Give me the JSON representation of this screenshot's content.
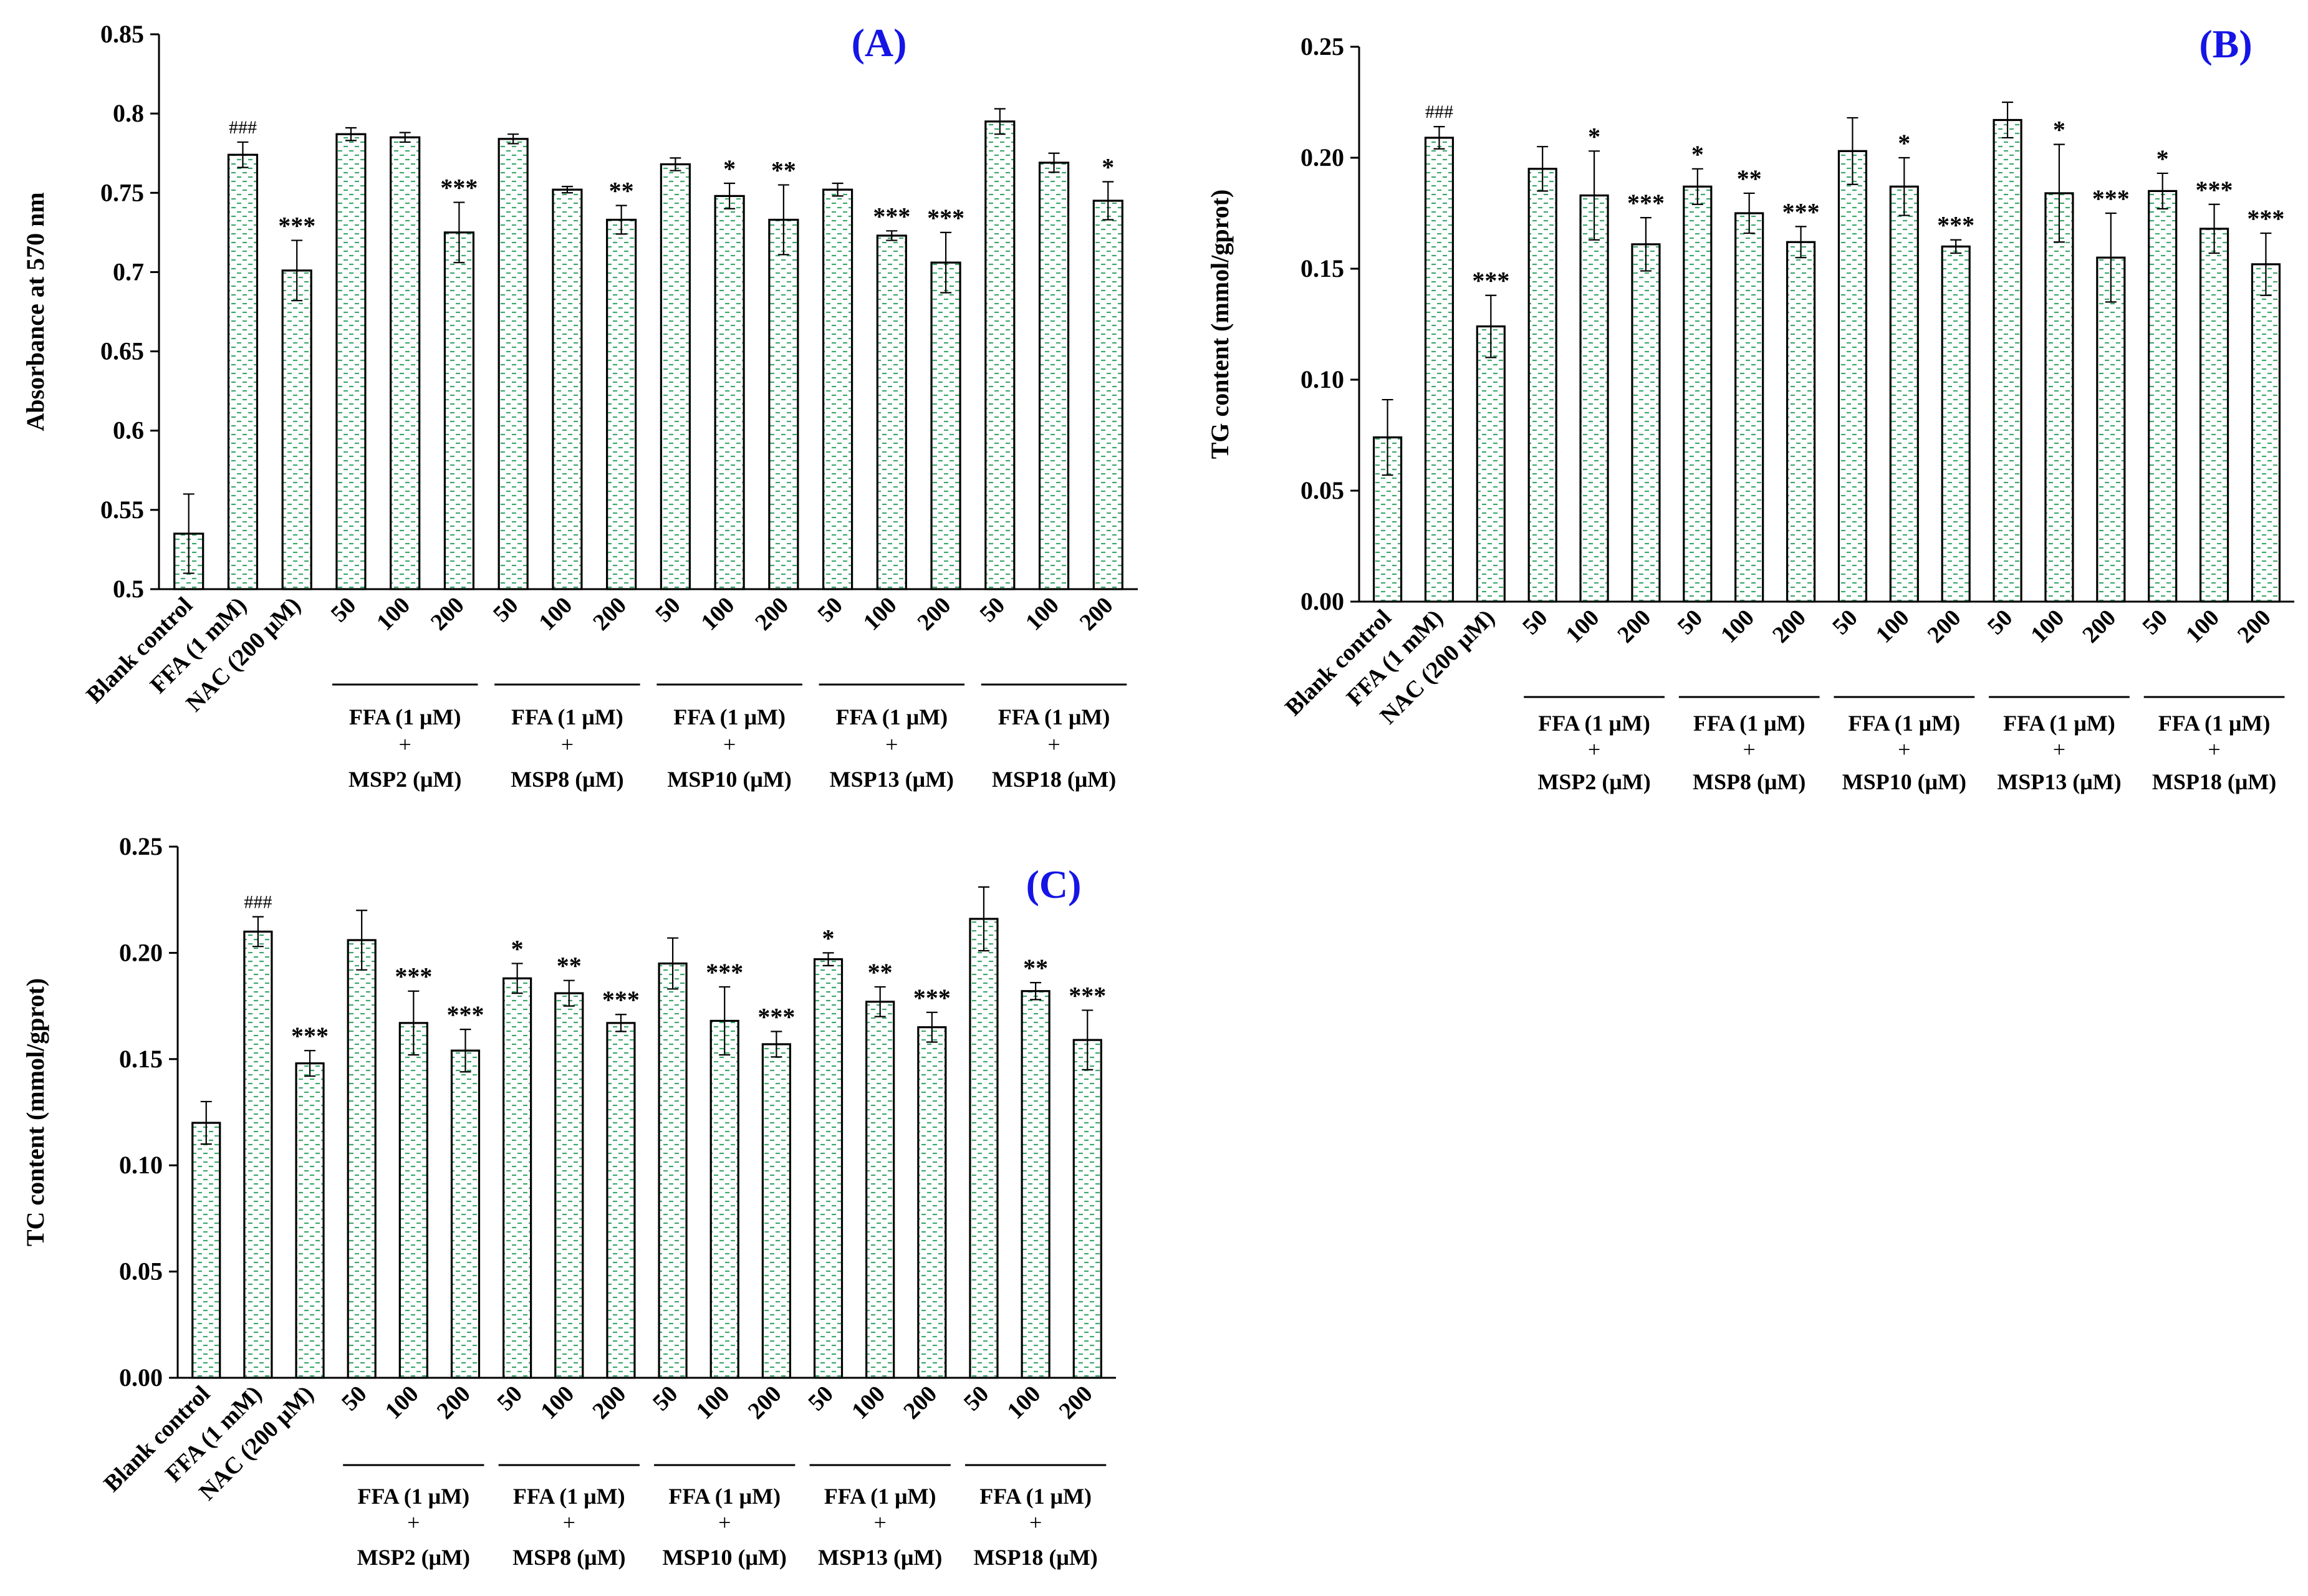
{
  "colors": {
    "bar_fill": "#ffffff",
    "bar_dash": "#3aa86b",
    "bar_edge": "#000000",
    "panel_letter": "#1515e6"
  },
  "common": {
    "single_labels": [
      "Blank control",
      "FFA (1 mM)",
      "NAC (200 μM)"
    ],
    "dose_labels": [
      "50",
      "100",
      "200"
    ],
    "groups": [
      {
        "line1": "FFA (1 μM)",
        "line2": "+",
        "line3": "MSP2 (μM)"
      },
      {
        "line1": "FFA (1 μM)",
        "line2": "+",
        "line3": "MSP8 (μM)"
      },
      {
        "line1": "FFA (1 μM)",
        "line2": "+",
        "line3": "MSP10 (μM)"
      },
      {
        "line1": "FFA (1 μM)",
        "line2": "+",
        "line3": "MSP13 (μM)"
      },
      {
        "line1": "FFA (1 μM)",
        "line2": "+",
        "line3": "MSP18 (μM)"
      }
    ]
  },
  "chart_data": [
    {
      "id": "A",
      "type": "bar",
      "letter": "(A)",
      "ylabel": "Absorbance at 570 nm",
      "ylim": [
        0.5,
        0.85
      ],
      "yticks": [
        "0.5",
        "0.55",
        "0.6",
        "0.65",
        "0.7",
        "0.75",
        "0.8",
        "0.85"
      ],
      "values": [
        0.535,
        0.774,
        0.701,
        0.787,
        0.785,
        0.725,
        0.784,
        0.752,
        0.733,
        0.768,
        0.748,
        0.733,
        0.752,
        0.723,
        0.706,
        0.795,
        0.769,
        0.745
      ],
      "errors": [
        0.025,
        0.008,
        0.019,
        0.004,
        0.003,
        0.019,
        0.003,
        0.002,
        0.009,
        0.004,
        0.008,
        0.022,
        0.004,
        0.003,
        0.019,
        0.008,
        0.006,
        0.012
      ],
      "annotations": [
        "",
        "###",
        "***",
        "",
        "",
        "***",
        "",
        "",
        "**",
        "",
        "*",
        "**",
        "",
        "***",
        "***",
        "",
        "",
        "*"
      ]
    },
    {
      "id": "B",
      "type": "bar",
      "letter": "(B)",
      "ylabel": "TG content (mmol/gprot)",
      "ylim": [
        0,
        0.25
      ],
      "yticks": [
        "0.00",
        "0.05",
        "0.10",
        "0.15",
        "0.20",
        "0.25"
      ],
      "values": [
        0.074,
        0.209,
        0.124,
        0.195,
        0.183,
        0.161,
        0.187,
        0.175,
        0.162,
        0.203,
        0.187,
        0.16,
        0.217,
        0.184,
        0.155,
        0.185,
        0.168,
        0.152
      ],
      "errors": [
        0.017,
        0.005,
        0.014,
        0.01,
        0.02,
        0.012,
        0.008,
        0.009,
        0.007,
        0.015,
        0.013,
        0.003,
        0.008,
        0.022,
        0.02,
        0.008,
        0.011,
        0.014
      ],
      "annotations": [
        "",
        "###",
        "***",
        "",
        "*",
        "***",
        "*",
        "**",
        "***",
        "",
        "*",
        "***",
        "",
        "*",
        "***",
        "*",
        "***",
        "***"
      ]
    },
    {
      "id": "C",
      "type": "bar",
      "letter": "(C)",
      "ylabel": "TC content (mmol/gprot)",
      "ylim": [
        0,
        0.25
      ],
      "yticks": [
        "0.00",
        "0.05",
        "0.10",
        "0.15",
        "0.20",
        "0.25"
      ],
      "values": [
        0.12,
        0.21,
        0.148,
        0.206,
        0.167,
        0.154,
        0.188,
        0.181,
        0.167,
        0.195,
        0.168,
        0.157,
        0.197,
        0.177,
        0.165,
        0.216,
        0.182,
        0.159
      ],
      "errors": [
        0.01,
        0.007,
        0.006,
        0.014,
        0.015,
        0.01,
        0.007,
        0.006,
        0.004,
        0.012,
        0.016,
        0.006,
        0.003,
        0.007,
        0.007,
        0.015,
        0.004,
        0.014
      ],
      "annotations": [
        "",
        "###",
        "***",
        "",
        "***",
        "***",
        "*",
        "**",
        "***",
        "",
        "***",
        "***",
        "*",
        "**",
        "***",
        "",
        "**",
        "***"
      ]
    }
  ]
}
